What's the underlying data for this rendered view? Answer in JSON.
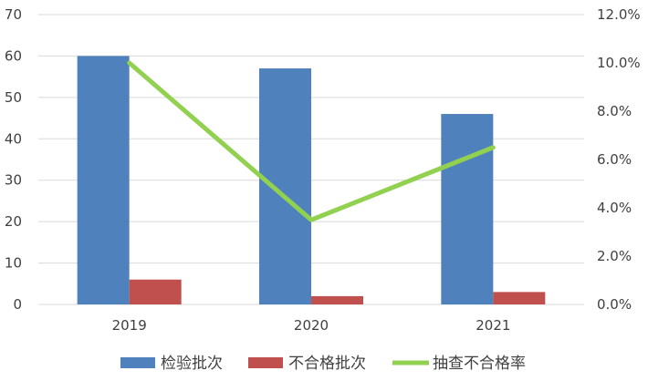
{
  "chart_data": {
    "type": "bar",
    "categories": [
      "2019",
      "2020",
      "2021"
    ],
    "series": [
      {
        "name": "检验批次",
        "type": "bar",
        "axis": "left",
        "values": [
          60,
          57,
          46
        ],
        "color": "#4f81bd"
      },
      {
        "name": "不合格批次",
        "type": "bar",
        "axis": "left",
        "values": [
          6,
          2,
          3
        ],
        "color": "#c0504d"
      },
      {
        "name": "抽查不合格率",
        "type": "line",
        "axis": "right",
        "values": [
          0.1,
          0.035,
          0.065
        ],
        "color": "#92d050"
      }
    ],
    "y_left": {
      "min": 0,
      "max": 70,
      "step": 10,
      "tick_labels": [
        "0",
        "10",
        "20",
        "30",
        "40",
        "50",
        "60",
        "70"
      ]
    },
    "y_right": {
      "min": 0,
      "max": 0.12,
      "step": 0.02,
      "tick_labels": [
        "0.0%",
        "2.0%",
        "4.0%",
        "6.0%",
        "8.0%",
        "10.0%",
        "12.0%"
      ]
    },
    "grid": true,
    "legend_position": "bottom",
    "gridline_color": "#d9d9d9"
  }
}
